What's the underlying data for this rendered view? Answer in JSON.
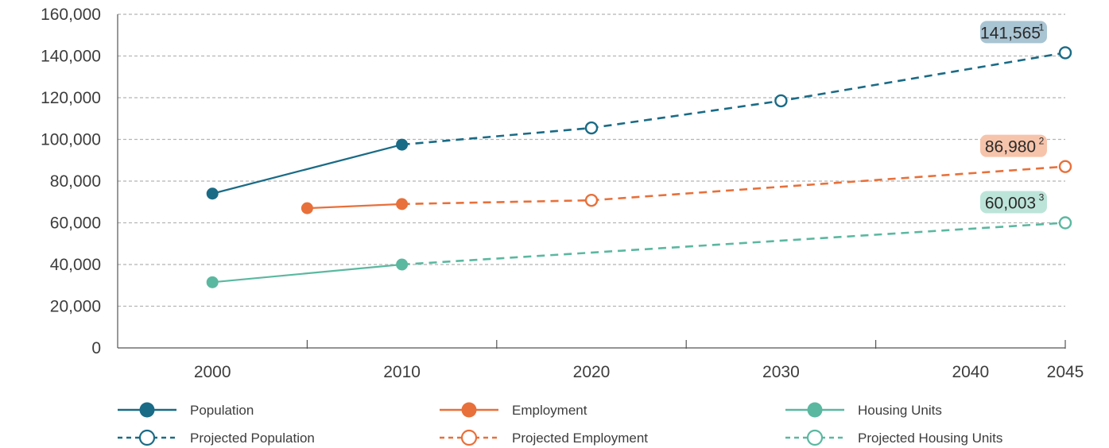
{
  "chart_data": {
    "type": "line",
    "x": [
      2000,
      2005,
      2010,
      2020,
      2030,
      2045
    ],
    "x_tick_labels": [
      "2000",
      "2010",
      "2020",
      "2030",
      "2040",
      "2045"
    ],
    "x_ticks": [
      2000,
      2010,
      2020,
      2030,
      2040,
      2045
    ],
    "y_tick_labels": [
      "0",
      "20,000",
      "40,000",
      "60,000",
      "80,000",
      "100,000",
      "120,000",
      "140,000",
      "160,000"
    ],
    "ylim": [
      0,
      160000
    ],
    "xlim": [
      1995,
      2045
    ],
    "grid": true,
    "legend_position": "bottom",
    "series": [
      {
        "name": "Population",
        "color": "#1a6b86",
        "style": "solid",
        "marker": "filled",
        "points": [
          {
            "x": 2000,
            "y": 74000
          },
          {
            "x": 2010,
            "y": 97500
          }
        ]
      },
      {
        "name": "Projected Population",
        "color": "#1a6b86",
        "style": "dashed",
        "marker": "open",
        "points": [
          {
            "x": 2010,
            "y": 97500
          },
          {
            "x": 2020,
            "y": 105500
          },
          {
            "x": 2030,
            "y": 118500
          },
          {
            "x": 2045,
            "y": 141565
          }
        ]
      },
      {
        "name": "Employment",
        "color": "#e8703a",
        "style": "solid",
        "marker": "filled",
        "points": [
          {
            "x": 2005,
            "y": 67000
          },
          {
            "x": 2010,
            "y": 69000
          }
        ]
      },
      {
        "name": "Projected Employment",
        "color": "#e8703a",
        "style": "dashed",
        "marker": "open",
        "points": [
          {
            "x": 2010,
            "y": 69000
          },
          {
            "x": 2020,
            "y": 70800
          },
          {
            "x": 2045,
            "y": 86980
          }
        ]
      },
      {
        "name": "Housing Units",
        "color": "#5bb8a0",
        "style": "solid",
        "marker": "filled",
        "points": [
          {
            "x": 2000,
            "y": 31500
          },
          {
            "x": 2010,
            "y": 40000
          }
        ]
      },
      {
        "name": "Projected Housing Units",
        "color": "#5bb8a0",
        "style": "dashed",
        "marker": "open",
        "points": [
          {
            "x": 2010,
            "y": 40000
          },
          {
            "x": 2045,
            "y": 60003
          }
        ]
      }
    ],
    "annotations": [
      {
        "text": "141,565",
        "sup": "1",
        "x": 2045,
        "y": 141565,
        "bg": "#a9c4d3",
        "series": "Projected Population"
      },
      {
        "text": "86,980",
        "sup": "2",
        "x": 2045,
        "y": 86980,
        "bg": "#f6c4ab",
        "series": "Projected Employment"
      },
      {
        "text": "60,003",
        "sup": "3",
        "x": 2045,
        "y": 60003,
        "bg": "#bde4d9",
        "series": "Projected Housing Units"
      }
    ]
  },
  "legend": [
    {
      "label": "Population",
      "color": "#1a6b86",
      "style": "solid",
      "marker": "filled"
    },
    {
      "label": "Employment",
      "color": "#e8703a",
      "style": "solid",
      "marker": "filled"
    },
    {
      "label": "Housing Units",
      "color": "#5bb8a0",
      "style": "solid",
      "marker": "filled"
    },
    {
      "label": "Projected Population",
      "color": "#1a6b86",
      "style": "dashed",
      "marker": "open"
    },
    {
      "label": "Projected Employment",
      "color": "#e8703a",
      "style": "dashed",
      "marker": "open"
    },
    {
      "label": "Projected Housing Units",
      "color": "#5bb8a0",
      "style": "dashed",
      "marker": "open"
    }
  ],
  "colors": {
    "grid": "#b5b5b5",
    "axis": "#555555",
    "text": "#3d3d3d"
  }
}
